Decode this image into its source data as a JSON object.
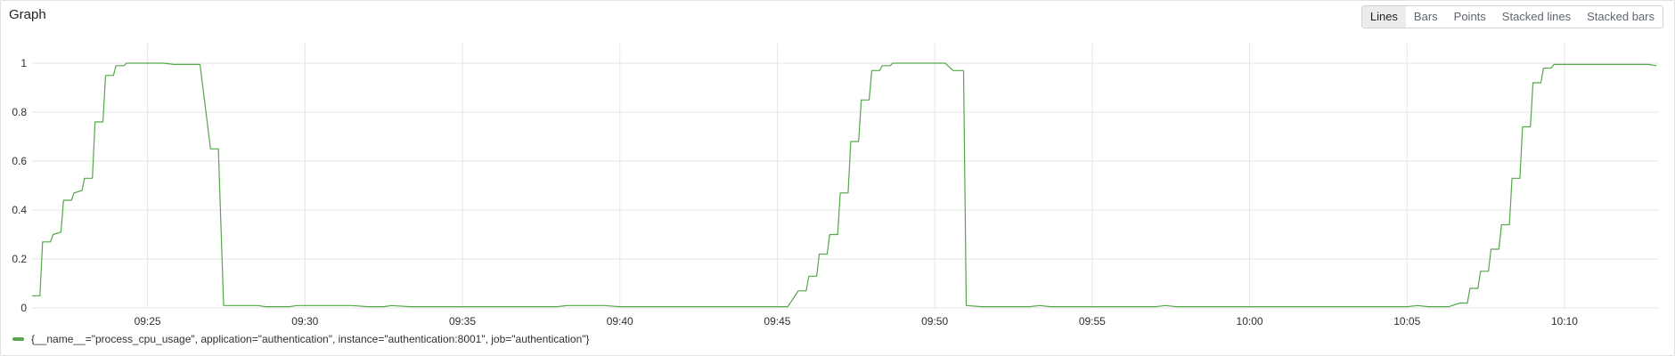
{
  "panel": {
    "title": "Graph"
  },
  "chart_types": [
    {
      "label": "Lines",
      "active": true
    },
    {
      "label": "Bars",
      "active": false
    },
    {
      "label": "Points",
      "active": false
    },
    {
      "label": "Stacked lines",
      "active": false
    },
    {
      "label": "Stacked bars",
      "active": false
    }
  ],
  "colors": {
    "series": "#56a64b",
    "grid": "#e6e6e6",
    "tick_text": "#2c2f33"
  },
  "chart_data": {
    "type": "line",
    "xlim": [
      "09:21:20",
      "10:13:00"
    ],
    "ylim": [
      0,
      1.08
    ],
    "x_ticks": [
      "09:25",
      "09:30",
      "09:35",
      "09:40",
      "09:45",
      "09:50",
      "09:55",
      "10:00",
      "10:05",
      "10:10"
    ],
    "y_ticks": [
      0,
      0.2,
      0.4,
      0.6,
      0.8,
      1
    ],
    "y_tick_labels": [
      "0",
      "0.2",
      "0.4",
      "0.6",
      "0.8",
      "1"
    ],
    "grid": true,
    "legend_position": "bottom-left",
    "series": [
      {
        "name": "{__name__=\"process_cpu_usage\", application=\"authentication\", instance=\"authentication:8001\", job=\"authentication\"}",
        "points": [
          [
            "09:21:20",
            0.05
          ],
          [
            "09:21:35",
            0.05
          ],
          [
            "09:21:40",
            0.27
          ],
          [
            "09:21:55",
            0.27
          ],
          [
            "09:22:00",
            0.3
          ],
          [
            "09:22:15",
            0.31
          ],
          [
            "09:22:20",
            0.44
          ],
          [
            "09:22:35",
            0.44
          ],
          [
            "09:22:40",
            0.47
          ],
          [
            "09:22:55",
            0.48
          ],
          [
            "09:23:00",
            0.53
          ],
          [
            "09:23:15",
            0.53
          ],
          [
            "09:23:20",
            0.76
          ],
          [
            "09:23:35",
            0.76
          ],
          [
            "09:23:40",
            0.95
          ],
          [
            "09:23:55",
            0.95
          ],
          [
            "09:24:00",
            0.99
          ],
          [
            "09:24:15",
            0.99
          ],
          [
            "09:24:20",
            1.0
          ],
          [
            "09:25:30",
            1.0
          ],
          [
            "09:25:50",
            0.995
          ],
          [
            "09:26:40",
            0.995
          ],
          [
            "09:27:00",
            0.65
          ],
          [
            "09:27:15",
            0.65
          ],
          [
            "09:27:25",
            0.01
          ],
          [
            "09:28:30",
            0.01
          ],
          [
            "09:28:45",
            0.005
          ],
          [
            "09:29:30",
            0.005
          ],
          [
            "09:29:45",
            0.01
          ],
          [
            "09:31:30",
            0.01
          ],
          [
            "09:32:00",
            0.005
          ],
          [
            "09:32:30",
            0.005
          ],
          [
            "09:32:45",
            0.01
          ],
          [
            "09:33:20",
            0.005
          ],
          [
            "09:38:00",
            0.005
          ],
          [
            "09:38:20",
            0.01
          ],
          [
            "09:39:30",
            0.01
          ],
          [
            "09:40:00",
            0.005
          ],
          [
            "09:45:20",
            0.005
          ],
          [
            "09:45:40",
            0.07
          ],
          [
            "09:45:55",
            0.07
          ],
          [
            "09:46:00",
            0.13
          ],
          [
            "09:46:15",
            0.13
          ],
          [
            "09:46:20",
            0.22
          ],
          [
            "09:46:35",
            0.22
          ],
          [
            "09:46:40",
            0.3
          ],
          [
            "09:46:55",
            0.3
          ],
          [
            "09:47:00",
            0.47
          ],
          [
            "09:47:15",
            0.47
          ],
          [
            "09:47:20",
            0.68
          ],
          [
            "09:47:35",
            0.68
          ],
          [
            "09:47:40",
            0.85
          ],
          [
            "09:47:55",
            0.85
          ],
          [
            "09:48:00",
            0.97
          ],
          [
            "09:48:15",
            0.97
          ],
          [
            "09:48:20",
            0.99
          ],
          [
            "09:48:35",
            0.99
          ],
          [
            "09:48:40",
            1.0
          ],
          [
            "09:50:20",
            1.0
          ],
          [
            "09:50:35",
            0.97
          ],
          [
            "09:50:55",
            0.97
          ],
          [
            "09:51:00",
            0.01
          ],
          [
            "09:51:30",
            0.005
          ],
          [
            "09:53:00",
            0.005
          ],
          [
            "09:53:20",
            0.01
          ],
          [
            "09:53:40",
            0.005
          ],
          [
            "09:57:00",
            0.005
          ],
          [
            "09:57:20",
            0.01
          ],
          [
            "09:57:40",
            0.005
          ],
          [
            "10:05:00",
            0.005
          ],
          [
            "10:05:20",
            0.01
          ],
          [
            "10:05:40",
            0.005
          ],
          [
            "10:06:20",
            0.005
          ],
          [
            "10:06:40",
            0.02
          ],
          [
            "10:06:55",
            0.02
          ],
          [
            "10:07:00",
            0.08
          ],
          [
            "10:07:15",
            0.08
          ],
          [
            "10:07:20",
            0.15
          ],
          [
            "10:07:35",
            0.15
          ],
          [
            "10:07:40",
            0.24
          ],
          [
            "10:07:55",
            0.24
          ],
          [
            "10:08:00",
            0.34
          ],
          [
            "10:08:15",
            0.34
          ],
          [
            "10:08:20",
            0.53
          ],
          [
            "10:08:35",
            0.53
          ],
          [
            "10:08:40",
            0.74
          ],
          [
            "10:08:55",
            0.74
          ],
          [
            "10:09:00",
            0.92
          ],
          [
            "10:09:15",
            0.92
          ],
          [
            "10:09:20",
            0.98
          ],
          [
            "10:09:35",
            0.98
          ],
          [
            "10:09:40",
            0.995
          ],
          [
            "10:12:40",
            0.995
          ],
          [
            "10:12:55",
            0.99
          ]
        ]
      }
    ]
  }
}
